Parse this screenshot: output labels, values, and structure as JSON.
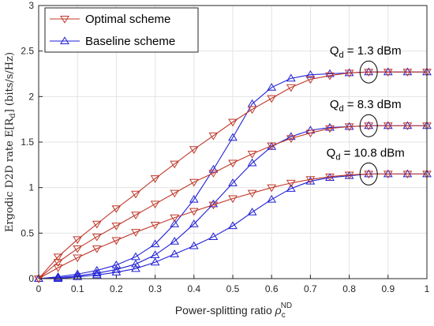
{
  "chart_data": {
    "type": "line",
    "xlabel_main": "Power-splitting ratio ",
    "xlabel_sym": "ρ",
    "xlabel_sub": "c",
    "xlabel_sup": "ND",
    "ylabel_main": "Ergodic D2D rate ",
    "ylabel_expr": "E[R",
    "ylabel_sub": "d",
    "ylabel_unit": "] (bits/s/Hz)",
    "xlim": [
      0,
      1
    ],
    "ylim": [
      0,
      3
    ],
    "xticks": [
      0,
      0.1,
      0.2,
      0.3,
      0.4,
      0.5,
      0.6,
      0.7,
      0.8,
      0.9,
      1
    ],
    "xtick_labels": [
      "0",
      "0.1",
      "0.2",
      "0.3",
      "0.4",
      "0.5",
      "0.6",
      "0.7",
      "0.8",
      "0.9",
      "1"
    ],
    "yticks": [
      0,
      0.5,
      1,
      1.5,
      2,
      2.5,
      3
    ],
    "ytick_labels": [
      "0",
      "0.5",
      "1",
      "1.5",
      "2",
      "2.5",
      "3"
    ],
    "grid": true,
    "legend_placement": "top-left",
    "legend": [
      {
        "label": "Optimal scheme",
        "color": "#c0392b",
        "marker": "triangle-down"
      },
      {
        "label": "Baseline scheme",
        "color": "#1f1fd6",
        "marker": "triangle-up"
      }
    ],
    "x": [
      0,
      0.05,
      0.1,
      0.15,
      0.2,
      0.25,
      0.3,
      0.35,
      0.4,
      0.45,
      0.5,
      0.55,
      0.6,
      0.65,
      0.7,
      0.75,
      0.8,
      0.85,
      0.9,
      0.95,
      1
    ],
    "series": [
      {
        "scheme": "optimal",
        "group": "Qd = 1.3 dBm",
        "color": "#c0392b",
        "marker": "triangle-down",
        "values": [
          0,
          0.24,
          0.43,
          0.6,
          0.77,
          0.93,
          1.1,
          1.26,
          1.42,
          1.57,
          1.72,
          1.86,
          1.98,
          2.1,
          2.19,
          2.23,
          2.26,
          2.27,
          2.27,
          2.27,
          2.27
        ]
      },
      {
        "scheme": "optimal",
        "group": "Qd = 8.3 dBm",
        "color": "#c0392b",
        "marker": "triangle-down",
        "values": [
          0,
          0.18,
          0.33,
          0.46,
          0.58,
          0.7,
          0.82,
          0.94,
          1.06,
          1.16,
          1.27,
          1.37,
          1.46,
          1.54,
          1.6,
          1.65,
          1.67,
          1.68,
          1.68,
          1.68,
          1.68
        ]
      },
      {
        "scheme": "optimal",
        "group": "Qd = 10.8 dBm",
        "color": "#c0392b",
        "marker": "triangle-down",
        "values": [
          0,
          0.12,
          0.23,
          0.33,
          0.42,
          0.51,
          0.59,
          0.67,
          0.74,
          0.81,
          0.88,
          0.94,
          1.0,
          1.05,
          1.09,
          1.12,
          1.14,
          1.15,
          1.15,
          1.15,
          1.15
        ]
      },
      {
        "scheme": "baseline",
        "group": "Qd = 1.3 dBm",
        "color": "#1f1fd6",
        "marker": "triangle-up",
        "values": [
          0,
          0.02,
          0.05,
          0.09,
          0.15,
          0.24,
          0.38,
          0.6,
          0.87,
          1.2,
          1.55,
          1.92,
          2.1,
          2.2,
          2.24,
          2.25,
          2.26,
          2.27,
          2.27,
          2.27,
          2.27
        ]
      },
      {
        "scheme": "baseline",
        "group": "Qd = 8.3 dBm",
        "color": "#1f1fd6",
        "marker": "triangle-up",
        "values": [
          0,
          0.01,
          0.03,
          0.06,
          0.1,
          0.16,
          0.26,
          0.41,
          0.6,
          0.82,
          1.05,
          1.27,
          1.45,
          1.56,
          1.63,
          1.66,
          1.67,
          1.68,
          1.68,
          1.68,
          1.68
        ]
      },
      {
        "scheme": "baseline",
        "group": "Qd = 10.8 dBm",
        "color": "#1f1fd6",
        "marker": "triangle-up",
        "values": [
          0,
          0.0,
          0.02,
          0.04,
          0.07,
          0.11,
          0.18,
          0.27,
          0.36,
          0.46,
          0.58,
          0.73,
          0.87,
          0.99,
          1.07,
          1.11,
          1.13,
          1.15,
          1.15,
          1.15,
          1.15
        ]
      }
    ],
    "annotations": [
      {
        "q": "Q",
        "sub": "d",
        "rest": " = 1.3 dBm",
        "x": 0.85,
        "y": 2.27
      },
      {
        "q": "Q",
        "sub": "d",
        "rest": " = 8.3 dBm",
        "x": 0.85,
        "y": 1.68
      },
      {
        "q": "Q",
        "sub": "d",
        "rest": " = 10.8 dBm",
        "x": 0.85,
        "y": 1.15
      }
    ]
  }
}
